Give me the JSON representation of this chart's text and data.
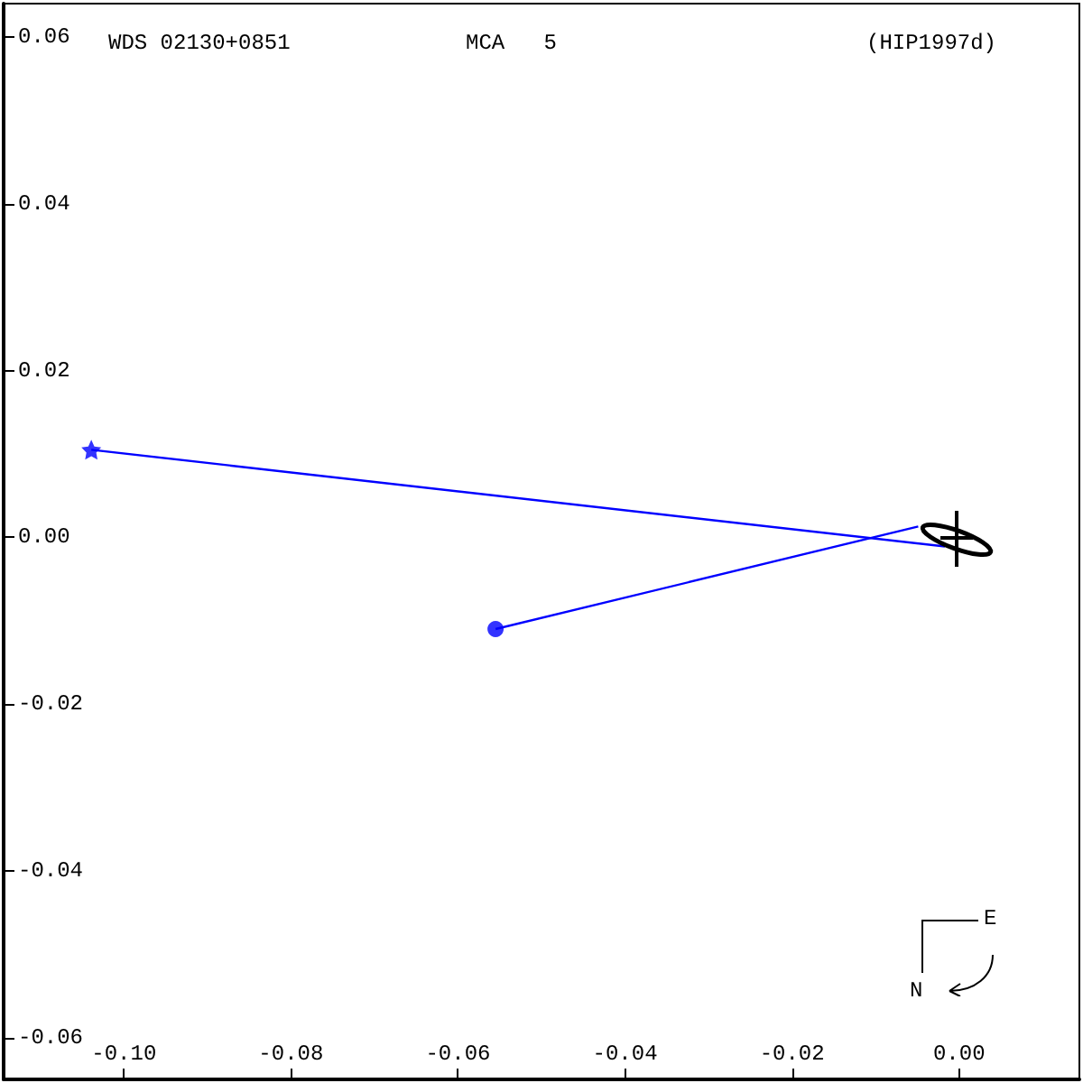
{
  "chart_data": {
    "type": "line",
    "annotations": [
      "WDS 02130+0851",
      "MCA   5",
      "(HIP1997d)",
      "E",
      "N"
    ],
    "series": [
      {
        "color": "#0000ff",
        "marker": "none",
        "x": [
          -0.1039,
          -0.0017
        ],
        "values": [
          0.0105,
          -0.0011
        ]
      },
      {
        "color": "#0000ff",
        "marker": "none",
        "x": [
          -0.0555,
          -0.0049
        ],
        "values": [
          -0.011,
          0.0013
        ]
      },
      {
        "type": "scatter",
        "color": "#0000ff",
        "marker": "star",
        "x": [
          -0.1039
        ],
        "values": [
          0.0105
        ]
      },
      {
        "type": "scatter",
        "color": "#0000ff",
        "marker": "circle",
        "x": [
          -0.0555
        ],
        "values": [
          -0.011
        ]
      }
    ],
    "xlim": [
      -0.1144,
      0.0144
    ],
    "xticks": [
      {
        "value": -0.1,
        "label": "-0.10"
      },
      -0.08,
      -0.06,
      -0.04,
      -0.02,
      {
        "value": 0,
        "label": "0.00"
      }
    ],
    "ylim": [
      -0.065,
      0.064
    ],
    "yticks": [
      -0.06,
      -0.04,
      -0.02,
      {
        "value": 0,
        "label": "0.00"
      },
      0.02,
      0.04,
      0.06
    ],
    "grid": false
  }
}
